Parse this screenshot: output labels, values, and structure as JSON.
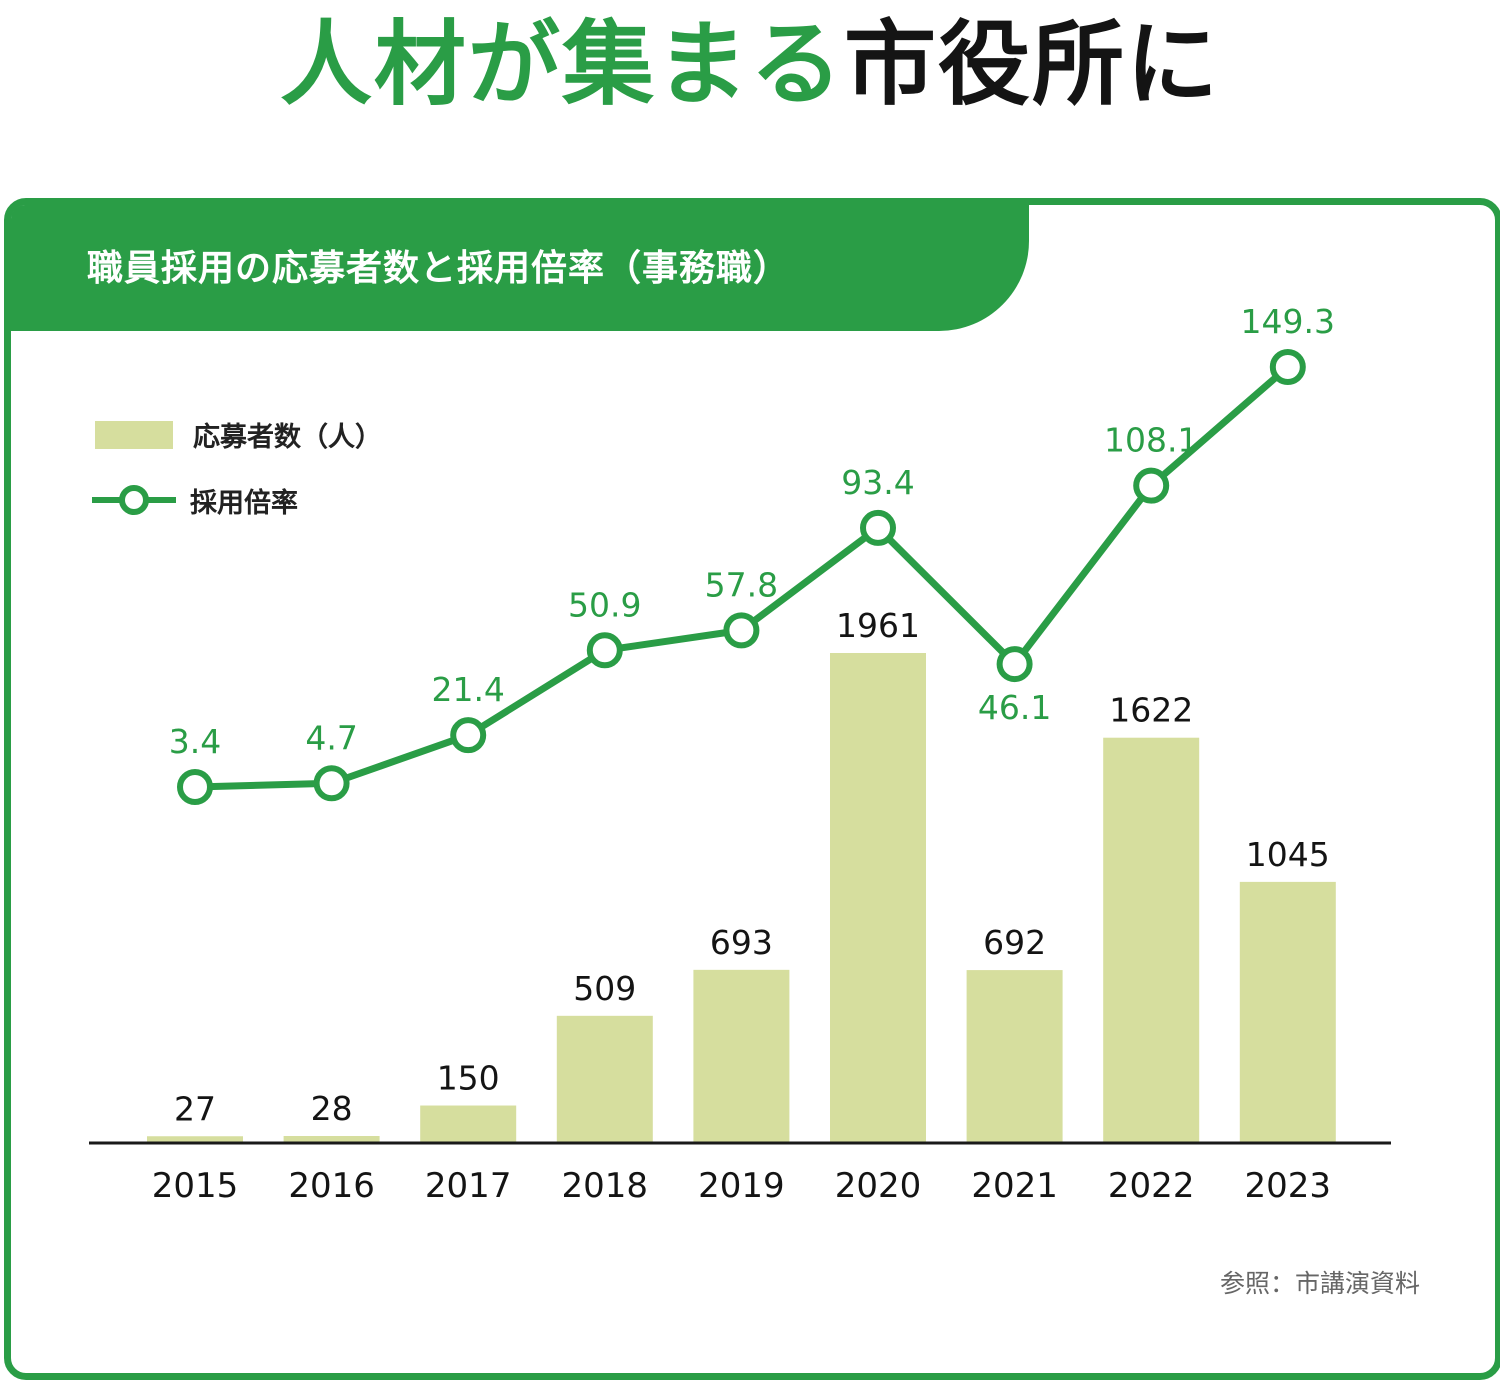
{
  "headline": {
    "part_green": "人材が集まる",
    "part_black": "市役所に"
  },
  "panel": {
    "title": "職員採用の応募者数と採用倍率（事務職）"
  },
  "legend": {
    "bars": "応募者数（人）",
    "line": "採用倍率"
  },
  "source": "参照：市講演資料",
  "colors": {
    "green": "#2a9d46",
    "bar": "#d6de9e",
    "text": "#141414"
  },
  "chart_data": {
    "type": "bar+line",
    "categories": [
      "2015",
      "2016",
      "2017",
      "2018",
      "2019",
      "2020",
      "2021",
      "2022",
      "2023"
    ],
    "series": [
      {
        "name": "応募者数（人）",
        "type": "bar",
        "values": [
          27,
          28,
          150,
          509,
          693,
          1961,
          692,
          1622,
          1045
        ]
      },
      {
        "name": "採用倍率",
        "type": "line",
        "values": [
          3.4,
          4.7,
          21.4,
          50.9,
          57.8,
          93.4,
          46.1,
          108.1,
          149.3
        ]
      }
    ],
    "value_labels": {
      "bars": [
        "27",
        "28",
        "150",
        "509",
        "693",
        "1961",
        "692",
        "1622",
        "1045"
      ],
      "line": [
        "3.4",
        "4.7",
        "21.4",
        "50.9",
        "57.8",
        "93.4",
        "46.1",
        "108.1",
        "149.3"
      ]
    },
    "line_label_positions": [
      "above",
      "above",
      "above",
      "above",
      "above",
      "above",
      "below",
      "above",
      "above"
    ],
    "grid": false,
    "legend_placement": "top-left"
  }
}
